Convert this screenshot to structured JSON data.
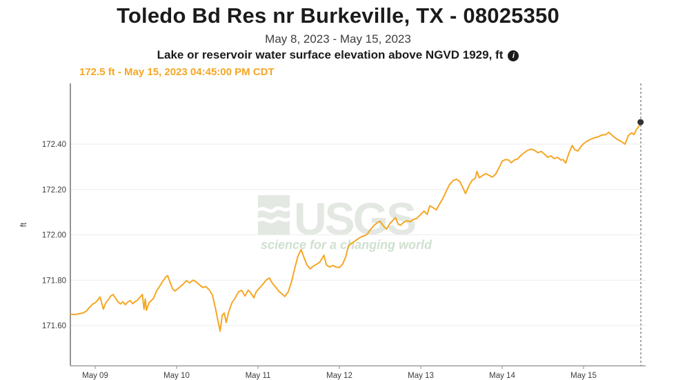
{
  "page": {
    "title": "Toledo Bd Res nr Burkeville, TX - 08025350",
    "date_range": "May 8, 2023 - May 15, 2023",
    "parameter_label": "Lake or reservoir water surface elevation above NGVD 1929, ft",
    "info_icon_glyph": "i",
    "current_reading": "172.5 ft - May 15, 2023 04:45:00 PM CDT"
  },
  "watermark": {
    "logo_text": "USGS",
    "tagline": "science for a changing world"
  },
  "colors": {
    "series": "#f5a623",
    "current_reading_text": "#f5a623",
    "marker": "#333333",
    "grid": "#ececec",
    "y_axis": "#4a4a4a",
    "x_axis": "#8c8c8c",
    "axis_text": "#3c3c3c",
    "dashed_line": "#6f6f6f",
    "watermark_block": "#e3e9e2",
    "watermark_letters": "#e3e9e2",
    "watermark_tagline": "#cfe0cf"
  },
  "chart_data": {
    "type": "line",
    "title": "Lake or reservoir water surface elevation above NGVD 1929, ft",
    "xlabel": "",
    "ylabel": "ft",
    "x_unit": "days since May 8, 2023 00:00 CDT",
    "xlim": [
      0.695,
      7.76
    ],
    "ylim": [
      171.42,
      172.67
    ],
    "grid": "horizontal-only",
    "legend": "none",
    "yticks": [
      {
        "label": "172.40",
        "value": 172.4
      },
      {
        "label": "172.20",
        "value": 172.2
      },
      {
        "label": "172.00",
        "value": 172.0
      },
      {
        "label": "171.80",
        "value": 171.8
      },
      {
        "label": "171.60",
        "value": 171.6
      }
    ],
    "xticks": [
      {
        "label": "May 09",
        "day": 1
      },
      {
        "label": "May 10",
        "day": 2
      },
      {
        "label": "May 11",
        "day": 3
      },
      {
        "label": "May 12",
        "day": 4
      },
      {
        "label": "May 13",
        "day": 5
      },
      {
        "label": "May 14",
        "day": 6
      },
      {
        "label": "May 15",
        "day": 7
      }
    ],
    "latest": {
      "value_ft": 172.497,
      "day": 7.7,
      "display": "172.5 ft - May 15, 2023 04:45:00 PM CDT"
    },
    "series": [
      {
        "name": "Lake elevation above NGVD 1929, ft",
        "points": [
          [
            0.7,
            171.65
          ],
          [
            0.75,
            171.648
          ],
          [
            0.8,
            171.652
          ],
          [
            0.85,
            171.655
          ],
          [
            0.89,
            171.663
          ],
          [
            0.93,
            171.68
          ],
          [
            0.97,
            171.695
          ],
          [
            1.0,
            171.7
          ],
          [
            1.03,
            171.712
          ],
          [
            1.06,
            171.726
          ],
          [
            1.08,
            171.7
          ],
          [
            1.1,
            171.672
          ],
          [
            1.13,
            171.7
          ],
          [
            1.16,
            171.713
          ],
          [
            1.19,
            171.73
          ],
          [
            1.22,
            171.737
          ],
          [
            1.25,
            171.72
          ],
          [
            1.28,
            171.705
          ],
          [
            1.31,
            171.695
          ],
          [
            1.34,
            171.705
          ],
          [
            1.37,
            171.692
          ],
          [
            1.4,
            171.703
          ],
          [
            1.43,
            171.71
          ],
          [
            1.46,
            171.696
          ],
          [
            1.49,
            171.705
          ],
          [
            1.52,
            171.712
          ],
          [
            1.55,
            171.725
          ],
          [
            1.58,
            171.737
          ],
          [
            1.6,
            171.672
          ],
          [
            1.615,
            171.717
          ],
          [
            1.63,
            171.667
          ],
          [
            1.66,
            171.7
          ],
          [
            1.69,
            171.71
          ],
          [
            1.72,
            171.722
          ],
          [
            1.75,
            171.75
          ],
          [
            1.79,
            171.772
          ],
          [
            1.83,
            171.795
          ],
          [
            1.87,
            171.815
          ],
          [
            1.89,
            171.82
          ],
          [
            1.92,
            171.79
          ],
          [
            1.95,
            171.762
          ],
          [
            1.98,
            171.752
          ],
          [
            2.0,
            171.758
          ],
          [
            2.04,
            171.77
          ],
          [
            2.08,
            171.782
          ],
          [
            2.12,
            171.798
          ],
          [
            2.16,
            171.788
          ],
          [
            2.2,
            171.8
          ],
          [
            2.24,
            171.793
          ],
          [
            2.28,
            171.78
          ],
          [
            2.32,
            171.768
          ],
          [
            2.36,
            171.772
          ],
          [
            2.4,
            171.758
          ],
          [
            2.44,
            171.735
          ],
          [
            2.48,
            171.672
          ],
          [
            2.52,
            171.6
          ],
          [
            2.535,
            171.575
          ],
          [
            2.56,
            171.645
          ],
          [
            2.585,
            171.655
          ],
          [
            2.61,
            171.613
          ],
          [
            2.64,
            171.66
          ],
          [
            2.68,
            171.7
          ],
          [
            2.72,
            171.722
          ],
          [
            2.76,
            171.748
          ],
          [
            2.8,
            171.755
          ],
          [
            2.84,
            171.73
          ],
          [
            2.88,
            171.756
          ],
          [
            2.92,
            171.74
          ],
          [
            2.95,
            171.722
          ],
          [
            2.98,
            171.75
          ],
          [
            3.0,
            171.758
          ],
          [
            3.05,
            171.778
          ],
          [
            3.1,
            171.8
          ],
          [
            3.14,
            171.81
          ],
          [
            3.18,
            171.785
          ],
          [
            3.22,
            171.768
          ],
          [
            3.26,
            171.75
          ],
          [
            3.3,
            171.738
          ],
          [
            3.33,
            171.728
          ],
          [
            3.37,
            171.748
          ],
          [
            3.41,
            171.79
          ],
          [
            3.45,
            171.85
          ],
          [
            3.49,
            171.905
          ],
          [
            3.53,
            171.935
          ],
          [
            3.56,
            171.905
          ],
          [
            3.6,
            171.868
          ],
          [
            3.64,
            171.85
          ],
          [
            3.68,
            171.862
          ],
          [
            3.72,
            171.87
          ],
          [
            3.76,
            171.88
          ],
          [
            3.81,
            171.91
          ],
          [
            3.84,
            171.868
          ],
          [
            3.88,
            171.858
          ],
          [
            3.92,
            171.865
          ],
          [
            3.96,
            171.858
          ],
          [
            4.0,
            171.856
          ],
          [
            4.04,
            171.87
          ],
          [
            4.08,
            171.905
          ],
          [
            4.11,
            171.95
          ],
          [
            4.15,
            171.962
          ],
          [
            4.19,
            171.972
          ],
          [
            4.22,
            171.98
          ],
          [
            4.26,
            171.99
          ],
          [
            4.3,
            171.995
          ],
          [
            4.34,
            172.002
          ],
          [
            4.38,
            172.022
          ],
          [
            4.42,
            172.04
          ],
          [
            4.46,
            172.052
          ],
          [
            4.5,
            172.06
          ],
          [
            4.54,
            172.04
          ],
          [
            4.58,
            172.025
          ],
          [
            4.62,
            172.05
          ],
          [
            4.69,
            172.076
          ],
          [
            4.72,
            172.048
          ],
          [
            4.75,
            172.042
          ],
          [
            4.79,
            172.055
          ],
          [
            4.83,
            172.062
          ],
          [
            4.87,
            172.058
          ],
          [
            4.91,
            172.068
          ],
          [
            4.95,
            172.072
          ],
          [
            5.0,
            172.09
          ],
          [
            5.04,
            172.105
          ],
          [
            5.08,
            172.09
          ],
          [
            5.11,
            172.128
          ],
          [
            5.15,
            172.12
          ],
          [
            5.19,
            172.11
          ],
          [
            5.23,
            172.135
          ],
          [
            5.27,
            172.16
          ],
          [
            5.31,
            172.19
          ],
          [
            5.35,
            172.22
          ],
          [
            5.4,
            172.24
          ],
          [
            5.44,
            172.245
          ],
          [
            5.48,
            172.235
          ],
          [
            5.52,
            172.205
          ],
          [
            5.55,
            172.182
          ],
          [
            5.59,
            172.215
          ],
          [
            5.63,
            172.24
          ],
          [
            5.67,
            172.25
          ],
          [
            5.69,
            172.28
          ],
          [
            5.72,
            172.252
          ],
          [
            5.76,
            172.262
          ],
          [
            5.8,
            172.27
          ],
          [
            5.84,
            172.262
          ],
          [
            5.88,
            172.255
          ],
          [
            5.92,
            172.268
          ],
          [
            5.96,
            172.295
          ],
          [
            6.0,
            172.325
          ],
          [
            6.04,
            172.332
          ],
          [
            6.08,
            172.33
          ],
          [
            6.11,
            172.318
          ],
          [
            6.15,
            172.33
          ],
          [
            6.19,
            172.335
          ],
          [
            6.23,
            172.35
          ],
          [
            6.27,
            172.362
          ],
          [
            6.31,
            172.372
          ],
          [
            6.36,
            172.378
          ],
          [
            6.4,
            172.372
          ],
          [
            6.44,
            172.362
          ],
          [
            6.48,
            172.368
          ],
          [
            6.52,
            172.356
          ],
          [
            6.56,
            172.342
          ],
          [
            6.6,
            172.348
          ],
          [
            6.64,
            172.336
          ],
          [
            6.68,
            172.342
          ],
          [
            6.72,
            172.33
          ],
          [
            6.75,
            172.332
          ],
          [
            6.78,
            172.316
          ],
          [
            6.82,
            172.36
          ],
          [
            6.86,
            172.394
          ],
          [
            6.89,
            172.376
          ],
          [
            6.93,
            172.37
          ],
          [
            6.97,
            172.39
          ],
          [
            7.0,
            172.402
          ],
          [
            7.05,
            172.415
          ],
          [
            7.09,
            172.422
          ],
          [
            7.13,
            172.428
          ],
          [
            7.18,
            172.432
          ],
          [
            7.22,
            172.44
          ],
          [
            7.27,
            172.442
          ],
          [
            7.31,
            172.452
          ],
          [
            7.36,
            172.436
          ],
          [
            7.41,
            172.422
          ],
          [
            7.46,
            172.412
          ],
          [
            7.51,
            172.4
          ],
          [
            7.55,
            172.438
          ],
          [
            7.59,
            172.45
          ],
          [
            7.62,
            172.442
          ],
          [
            7.65,
            172.465
          ],
          [
            7.68,
            172.478
          ],
          [
            7.7,
            172.497
          ]
        ]
      }
    ]
  }
}
